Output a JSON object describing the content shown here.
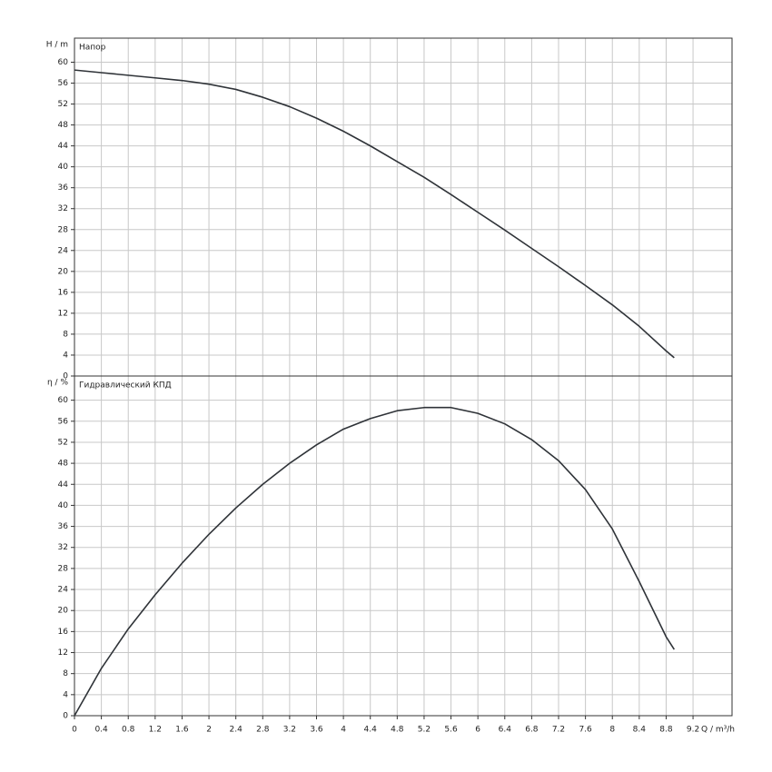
{
  "chart_data": [
    {
      "type": "line",
      "title": "Напор",
      "y_label": "H / m",
      "x": [
        0,
        0.4,
        0.8,
        1.2,
        1.6,
        2,
        2.4,
        2.8,
        3.2,
        3.6,
        4,
        4.4,
        4.8,
        5.2,
        5.6,
        6,
        6.4,
        6.8,
        7.2,
        7.6,
        8,
        8.4,
        8.8,
        8.92
      ],
      "series": [
        {
          "color": "#2f3338",
          "values": [
            58.5,
            58,
            57.5,
            57,
            56.5,
            55.8,
            54.8,
            53.3,
            51.5,
            49.3,
            46.8,
            44,
            41,
            38,
            34.7,
            31.3,
            27.9,
            24.4,
            20.9,
            17.3,
            13.6,
            9.5,
            4.8,
            3.5
          ]
        }
      ],
      "xlim": [
        0,
        9.78
      ],
      "ylim": [
        0,
        64.6
      ],
      "yticks": [
        0,
        4,
        8,
        12,
        16,
        20,
        24,
        28,
        32,
        36,
        40,
        44,
        48,
        52,
        56,
        60
      ],
      "grid": true
    },
    {
      "type": "line",
      "title": "Гидравлический КПД",
      "y_label": "η / %",
      "x_label": "Q / m³/h",
      "x": [
        0,
        0.4,
        0.8,
        1.2,
        1.6,
        2,
        2.4,
        2.8,
        3.2,
        3.6,
        4,
        4.4,
        4.8,
        5.2,
        5.6,
        6,
        6.4,
        6.8,
        7.2,
        7.6,
        8,
        8.4,
        8.8,
        8.92
      ],
      "series": [
        {
          "color": "#2f3338",
          "values": [
            0,
            9,
            16.5,
            23,
            29,
            34.5,
            39.5,
            44,
            48,
            51.5,
            54.5,
            56.5,
            58,
            58.6,
            58.6,
            57.5,
            55.5,
            52.5,
            48.5,
            43,
            35.5,
            25.5,
            15,
            12.6
          ]
        }
      ],
      "xlim": [
        0,
        9.78
      ],
      "ylim": [
        0,
        64.6
      ],
      "xticks": [
        0,
        0.4,
        0.8,
        1.2,
        1.6,
        2,
        2.4,
        2.8,
        3.2,
        3.6,
        4,
        4.4,
        4.8,
        5.2,
        5.6,
        6,
        6.4,
        6.8,
        7.2,
        7.6,
        8,
        8.4,
        8.8,
        9.2
      ],
      "yticks": [
        0,
        4,
        8,
        12,
        16,
        20,
        24,
        28,
        32,
        36,
        40,
        44,
        48,
        52,
        56,
        60
      ],
      "grid": true
    }
  ]
}
